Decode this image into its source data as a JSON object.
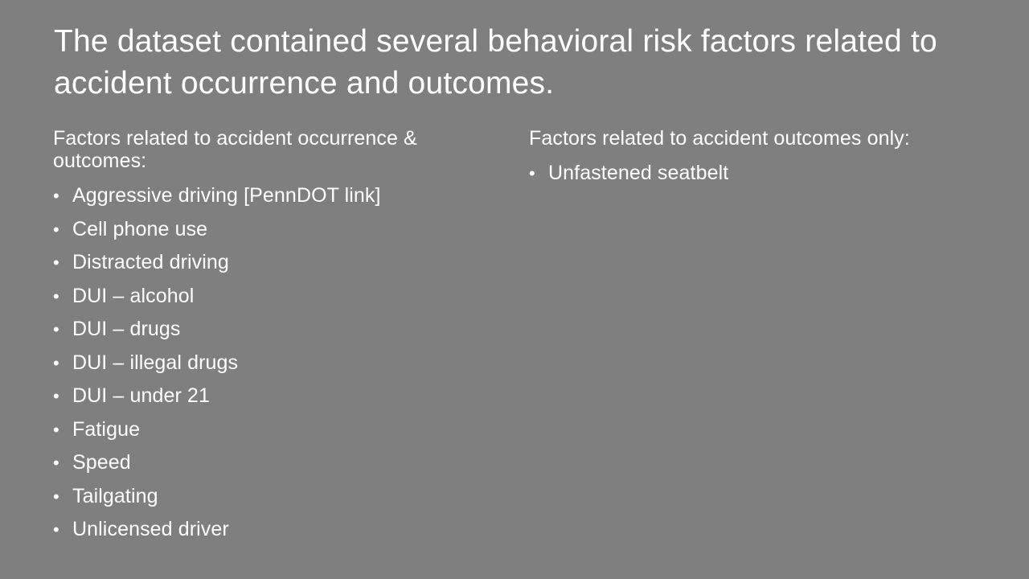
{
  "slide": {
    "title": "The dataset contained several behavioral risk factors related to accident occurrence and outcomes.",
    "bullet_glyph": "•",
    "left_column": {
      "heading": "Factors related to accident occurrence & outcomes:",
      "items": [
        "Aggressive driving [PennDOT link]",
        "Cell phone use",
        "Distracted driving",
        "DUI – alcohol",
        "DUI – drugs",
        "DUI – illegal drugs",
        "DUI – under 21",
        "Fatigue",
        "Speed",
        "Tailgating",
        "Unlicensed driver"
      ]
    },
    "right_column": {
      "heading": "Factors related to accident outcomes only:",
      "items": [
        "Unfastened seatbelt"
      ]
    },
    "colors": {
      "background": "#7f7f7f",
      "text": "#ffffff"
    }
  }
}
